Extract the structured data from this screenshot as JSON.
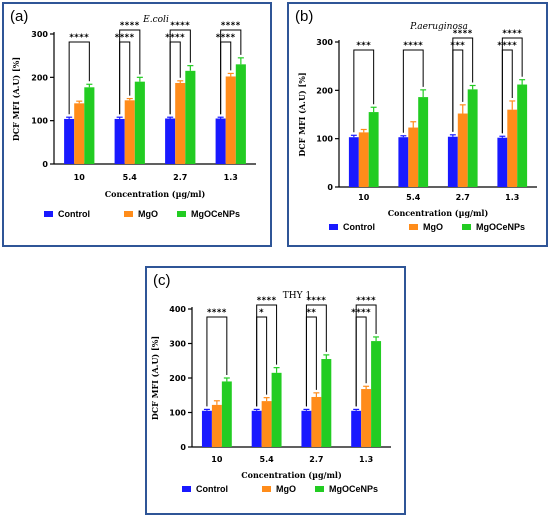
{
  "colors": {
    "control": "#1919ff",
    "mgo": "#ff8c1a",
    "mgocenps": "#22cc22",
    "frame": "#2f5597"
  },
  "legend_labels": [
    "Control",
    "MgO",
    "MgOCeNPs"
  ],
  "chart_data": [
    {
      "panel": "(a)",
      "type": "bar",
      "title": "E.coli",
      "title_italic": true,
      "xlabel": "Concentration (µg/ml)",
      "ylabel": "DCF MFI (A.U) [%]",
      "ylim": [
        0,
        300
      ],
      "yticks": [
        0,
        100,
        200,
        300
      ],
      "categories": [
        "10",
        "5.4",
        "2.7",
        "1.3"
      ],
      "series": [
        {
          "name": "Control",
          "values": [
            104,
            104,
            105,
            105
          ],
          "errors": [
            4,
            4,
            3,
            3
          ]
        },
        {
          "name": "MgO",
          "values": [
            140,
            147,
            187,
            202
          ],
          "errors": [
            5,
            4,
            5,
            7
          ]
        },
        {
          "name": "MgOCeNPs",
          "values": [
            177,
            190,
            215,
            230
          ],
          "errors": [
            7,
            10,
            12,
            15
          ]
        }
      ],
      "brackets": [
        {
          "category": 0,
          "from": 0,
          "to": 2,
          "label": "****",
          "level": 0
        },
        {
          "category": 1,
          "from": 0,
          "to": 1,
          "label": "****",
          "level": 0
        },
        {
          "category": 1,
          "from": 0,
          "to": 2,
          "label": "****",
          "level": 1
        },
        {
          "category": 2,
          "from": 0,
          "to": 1,
          "label": "****",
          "level": 0
        },
        {
          "category": 2,
          "from": 0,
          "to": 2,
          "label": "****",
          "level": 1
        },
        {
          "category": 3,
          "from": 0,
          "to": 1,
          "label": "****",
          "level": 0
        },
        {
          "category": 3,
          "from": 0,
          "to": 2,
          "label": "****",
          "level": 1
        }
      ]
    },
    {
      "panel": "(b)",
      "type": "bar",
      "title": "P.aeruginosa",
      "title_italic": true,
      "xlabel": "Concentration (µg/ml)",
      "ylabel": "DCF MFI (A.U) [%]",
      "ylim": [
        0,
        300
      ],
      "yticks": [
        0,
        100,
        200,
        300
      ],
      "categories": [
        "10",
        "5.4",
        "2.7",
        "1.3"
      ],
      "series": [
        {
          "name": "Control",
          "values": [
            103,
            103,
            104,
            102
          ],
          "errors": [
            4,
            3,
            4,
            3
          ]
        },
        {
          "name": "MgO",
          "values": [
            113,
            123,
            152,
            160
          ],
          "errors": [
            6,
            12,
            18,
            18
          ]
        },
        {
          "name": "MgOCeNPs",
          "values": [
            155,
            186,
            202,
            212
          ],
          "errors": [
            10,
            15,
            8,
            10
          ]
        }
      ],
      "brackets": [
        {
          "category": 0,
          "from": 0,
          "to": 2,
          "label": "***",
          "level": 0
        },
        {
          "category": 1,
          "from": 0,
          "to": 2,
          "label": "****",
          "level": 0
        },
        {
          "category": 2,
          "from": 0,
          "to": 1,
          "label": "***",
          "level": 0
        },
        {
          "category": 2,
          "from": 0,
          "to": 2,
          "label": "****",
          "level": 1
        },
        {
          "category": 3,
          "from": 0,
          "to": 1,
          "label": "****",
          "level": 0
        },
        {
          "category": 3,
          "from": 0,
          "to": 2,
          "label": "****",
          "level": 1
        }
      ]
    },
    {
      "panel": "(c)",
      "type": "bar",
      "title": "THY 1",
      "title_italic": false,
      "xlabel": "Concentration (µg/ml)",
      "ylabel": "DCF MFI (A.U) [%]",
      "ylim": [
        0,
        400
      ],
      "yticks": [
        0,
        100,
        200,
        300,
        400
      ],
      "categories": [
        "10",
        "5.4",
        "2.7",
        "1.3"
      ],
      "series": [
        {
          "name": "Control",
          "values": [
            105,
            105,
            105,
            105
          ],
          "errors": [
            4,
            4,
            4,
            4
          ]
        },
        {
          "name": "MgO",
          "values": [
            122,
            133,
            145,
            168
          ],
          "errors": [
            12,
            10,
            12,
            8
          ]
        },
        {
          "name": "MgOCeNPs",
          "values": [
            190,
            215,
            255,
            307
          ],
          "errors": [
            10,
            15,
            12,
            12
          ]
        }
      ],
      "brackets": [
        {
          "category": 0,
          "from": 0,
          "to": 2,
          "label": "****",
          "level": 0
        },
        {
          "category": 1,
          "from": 0,
          "to": 1,
          "label": "*",
          "level": 0
        },
        {
          "category": 1,
          "from": 0,
          "to": 2,
          "label": "****",
          "level": 1
        },
        {
          "category": 2,
          "from": 0,
          "to": 1,
          "label": "**",
          "level": 0
        },
        {
          "category": 2,
          "from": 0,
          "to": 2,
          "label": "****",
          "level": 1
        },
        {
          "category": 3,
          "from": 0,
          "to": 1,
          "label": "****",
          "level": 0
        },
        {
          "category": 3,
          "from": 0,
          "to": 2,
          "label": "****",
          "level": 1
        }
      ]
    }
  ]
}
